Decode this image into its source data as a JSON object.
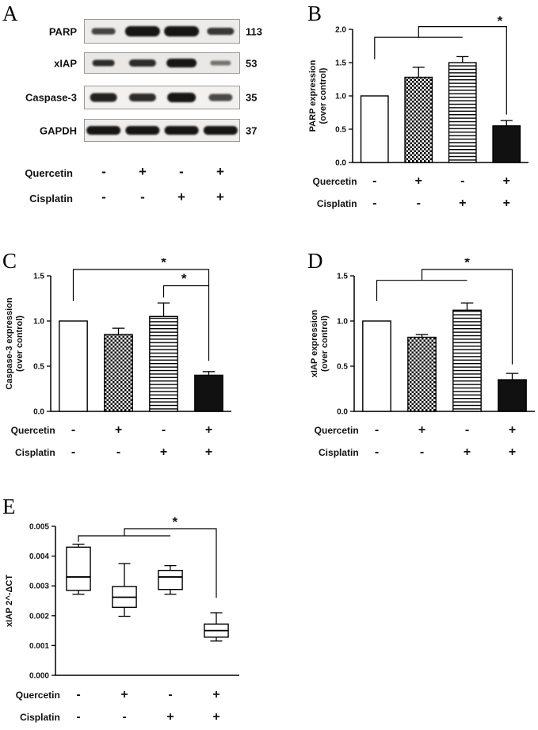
{
  "panels": {
    "a": {
      "label": "A",
      "blots": [
        {
          "protein": "PARP",
          "mw": "113",
          "bg": "#edebe9",
          "bands": [
            [
              30,
              8,
              0.8
            ],
            [
              44,
              13,
              1
            ],
            [
              44,
              13,
              1
            ],
            [
              34,
              9,
              0.85
            ]
          ]
        },
        {
          "protein": "xIAP",
          "mw": "53",
          "bg": "#eae8e6",
          "bands": [
            [
              28,
              8,
              0.9
            ],
            [
              34,
              9,
              0.9
            ],
            [
              38,
              11,
              1
            ],
            [
              26,
              6,
              0.55
            ]
          ]
        },
        {
          "protein": "Caspase-3",
          "mw": "35",
          "bg": "#f3f1ef",
          "bands": [
            [
              34,
              11,
              0.95
            ],
            [
              34,
              10,
              0.9
            ],
            [
              36,
              12,
              1
            ],
            [
              30,
              9,
              0.75
            ]
          ]
        },
        {
          "protein": "GAPDH",
          "mw": "37",
          "bg": "#efedeb",
          "bands": [
            [
              43,
              11,
              1
            ],
            [
              43,
              11,
              1
            ],
            [
              43,
              11,
              1
            ],
            [
              43,
              11,
              1
            ]
          ]
        }
      ],
      "treatments": [
        {
          "name": "Quercetin",
          "values": [
            "-",
            "+",
            "-",
            "+"
          ]
        },
        {
          "name": "Cisplatin",
          "values": [
            "-",
            "-",
            "+",
            "+"
          ]
        }
      ]
    },
    "b": {
      "label": "B"
    },
    "c": {
      "label": "C"
    },
    "d": {
      "label": "D"
    },
    "e": {
      "label": "E"
    }
  },
  "colors": {
    "bar_fill_dark": "#111111",
    "axis": "#000000"
  },
  "chart_data": [
    {
      "id": "B",
      "type": "bar",
      "ylabel_lines": [
        "PARP expression",
        "(over control)"
      ],
      "ylim": [
        0,
        2.0
      ],
      "yticks": [
        0,
        0.5,
        1.0,
        1.5,
        2.0
      ],
      "ytick_labels": [
        "0.0",
        "0.5",
        "1.0",
        "1.5",
        "2.0"
      ],
      "categories": [
        "control",
        "quercetin",
        "cisplatin",
        "quercetin+cisplatin"
      ],
      "values": [
        1.0,
        1.28,
        1.5,
        0.55
      ],
      "errors": [
        0,
        0.15,
        0.09,
        0.08
      ],
      "bar_styles": [
        "white",
        "checker",
        "hlines",
        "black"
      ],
      "significance": "*",
      "brackets": [
        [
          [
            0,
            1.55
          ],
          [
            0,
            1.88
          ],
          [
            2,
            1.88
          ]
        ],
        [
          [
            1,
            1.88
          ],
          [
            1,
            2.04
          ],
          [
            3,
            2.04
          ],
          [
            3,
            0.72
          ]
        ]
      ],
      "stars": [
        [
          2.85,
          2.06
        ]
      ],
      "treatments": [
        {
          "name": "Quercetin",
          "values": [
            "-",
            "+",
            "-",
            "+"
          ]
        },
        {
          "name": "Cisplatin",
          "values": [
            "-",
            "-",
            "+",
            "+"
          ]
        }
      ],
      "plot": {
        "l": 60,
        "r": 282,
        "t": 25,
        "b": 193
      },
      "treat_y": [
        221,
        249
      ]
    },
    {
      "id": "C",
      "type": "bar",
      "ylabel_lines": [
        "Caspase-3 expression",
        "(over control)"
      ],
      "ylim": [
        0,
        1.5
      ],
      "yticks": [
        0,
        0.5,
        1.0,
        1.5
      ],
      "ytick_labels": [
        "0.0",
        "0.5",
        "1.0",
        "1.5"
      ],
      "categories": [
        "control",
        "quercetin",
        "cisplatin",
        "quercetin+cisplatin"
      ],
      "values": [
        1.0,
        0.85,
        1.05,
        0.4
      ],
      "errors": [
        0,
        0.07,
        0.15,
        0.04
      ],
      "bar_styles": [
        "white",
        "checker",
        "hlines",
        "black"
      ],
      "significance": "*",
      "brackets": [
        [
          [
            0,
            1.22
          ],
          [
            0,
            1.57
          ],
          [
            3,
            1.57
          ],
          [
            3,
            0.56
          ]
        ],
        [
          [
            2,
            1.26
          ],
          [
            2,
            1.39
          ],
          [
            3,
            1.39
          ]
        ]
      ],
      "stars": [
        [
          2.0,
          1.6
        ],
        [
          2.45,
          1.42
        ]
      ],
      "treatments": [
        {
          "name": "Quercetin",
          "values": [
            "-",
            "+",
            "-",
            "+"
          ]
        },
        {
          "name": "Cisplatin",
          "values": [
            "-",
            "-",
            "+",
            "+"
          ]
        }
      ],
      "plot": {
        "l": 62,
        "r": 290,
        "t": 22,
        "b": 193
      },
      "treat_y": [
        221,
        249
      ]
    },
    {
      "id": "D",
      "type": "bar",
      "ylabel_lines": [
        "xIAP expression",
        "(over control)"
      ],
      "ylim": [
        0,
        1.5
      ],
      "yticks": [
        0,
        0.5,
        1.0,
        1.5
      ],
      "ytick_labels": [
        "0.0",
        "0.5",
        "1.0",
        "1.5"
      ],
      "categories": [
        "control",
        "quercetin",
        "cisplatin",
        "quercetin+cisplatin"
      ],
      "values": [
        1.0,
        0.82,
        1.12,
        0.35
      ],
      "errors": [
        0,
        0.03,
        0.08,
        0.07
      ],
      "bar_styles": [
        "white",
        "checker",
        "hlines",
        "black"
      ],
      "significance": "*",
      "brackets": [
        [
          [
            0,
            1.22
          ],
          [
            0,
            1.45
          ],
          [
            2,
            1.45
          ]
        ],
        [
          [
            1,
            1.45
          ],
          [
            1,
            1.57
          ],
          [
            3,
            1.57
          ],
          [
            3,
            0.52
          ]
        ]
      ],
      "stars": [
        [
          2.0,
          1.6
        ]
      ],
      "treatments": [
        {
          "name": "Quercetin",
          "values": [
            "-",
            "+",
            "-",
            "+"
          ]
        },
        {
          "name": "Cisplatin",
          "values": [
            "-",
            "-",
            "+",
            "+"
          ]
        }
      ],
      "plot": {
        "l": 60,
        "r": 288,
        "t": 22,
        "b": 193
      },
      "treat_y": [
        221,
        249
      ]
    },
    {
      "id": "E",
      "type": "box",
      "ylabel_lines": [
        "xIAP 2^-ΔCT"
      ],
      "ylim": [
        0,
        0.005
      ],
      "yticks": [
        0,
        0.001,
        0.002,
        0.003,
        0.004,
        0.005
      ],
      "ytick_labels": [
        "0.000",
        "0.001",
        "0.002",
        "0.003",
        "0.004",
        "0.005"
      ],
      "categories": [
        "control",
        "quercetin",
        "cisplatin",
        "quercetin+cisplatin"
      ],
      "boxes": [
        {
          "whislo": 0.00272,
          "q1": 0.00285,
          "med": 0.0033,
          "q3": 0.0043,
          "whishi": 0.0044
        },
        {
          "whislo": 0.00198,
          "q1": 0.00228,
          "med": 0.00262,
          "q3": 0.00298,
          "whishi": 0.00375
        },
        {
          "whislo": 0.00272,
          "q1": 0.00288,
          "med": 0.0033,
          "q3": 0.00352,
          "whishi": 0.00368
        },
        {
          "whislo": 0.00115,
          "q1": 0.00128,
          "med": 0.0015,
          "q3": 0.00172,
          "whishi": 0.0021
        }
      ],
      "significance": "*",
      "brackets": [
        [
          [
            0,
            0.00448
          ],
          [
            0,
            0.00468
          ],
          [
            2,
            0.00468
          ]
        ],
        [
          [
            1,
            0.00468
          ],
          [
            1,
            0.00492
          ],
          [
            3,
            0.00492
          ],
          [
            3,
            0.0026
          ]
        ]
      ],
      "stars": [
        [
          2.1,
          0.005
        ]
      ],
      "treatments": [
        {
          "name": "Quercetin",
          "values": [
            "-",
            "+",
            "-",
            "+"
          ]
        },
        {
          "name": "Cisplatin",
          "values": [
            "-",
            "-",
            "+",
            "+"
          ]
        }
      ],
      "plot": {
        "l": 68,
        "r": 300,
        "t": 22,
        "b": 210
      },
      "treat_y": [
        239,
        267
      ]
    }
  ]
}
